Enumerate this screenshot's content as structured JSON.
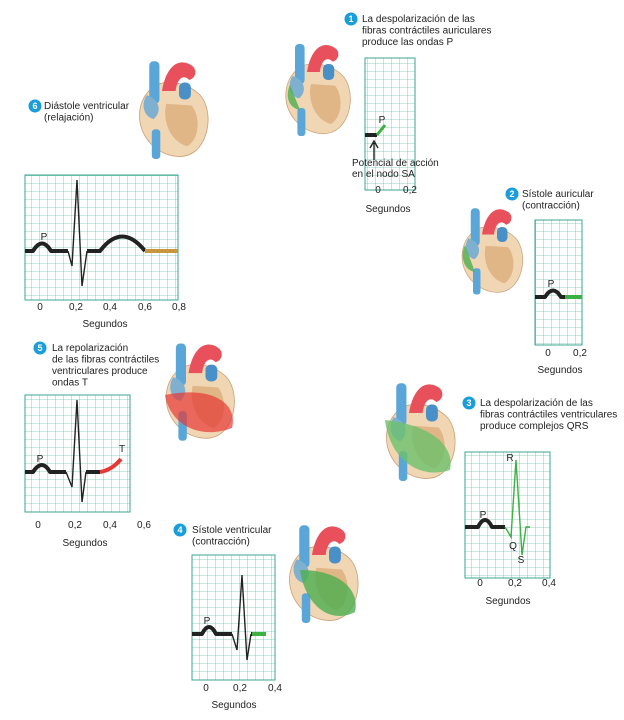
{
  "steps": [
    {
      "number": "1",
      "caption": [
        "La despolarización de las",
        "fibras contráctiles auriculares",
        "produce las ondas P"
      ],
      "xticks": [
        "0",
        "0,2"
      ],
      "xlabel": "Segundos",
      "waves": [
        "P"
      ]
    },
    {
      "number": "2",
      "caption": [
        "Sístole auricular",
        "(contracción)"
      ],
      "xticks": [
        "0",
        "0,2"
      ],
      "xlabel": "Segundos",
      "waves": [
        "P"
      ]
    },
    {
      "number": "3",
      "caption": [
        "La despolarización de las",
        "fibras contráctiles ventriculares",
        "produce complejos QRS"
      ],
      "xticks": [
        "0",
        "0,2",
        "0,4"
      ],
      "xlabel": "Segundos",
      "waves": [
        "P",
        "R",
        "Q",
        "S"
      ]
    },
    {
      "number": "4",
      "caption": [
        "Sístole ventricular",
        "(contracción)"
      ],
      "xticks": [
        "0",
        "0,2",
        "0,4"
      ],
      "xlabel": "Segundos",
      "waves": [
        "P"
      ]
    },
    {
      "number": "5",
      "caption": [
        "La repolarización",
        "de las fibras contráctiles",
        "ventriculares produce",
        "ondas T"
      ],
      "xticks": [
        "0",
        "0,2",
        "0,4",
        "0,6"
      ],
      "xlabel": "Segundos",
      "waves": [
        "P",
        "T"
      ]
    },
    {
      "number": "6",
      "caption": [
        "Diástole ventricular",
        "(relajación)"
      ],
      "xticks": [
        "0",
        "0,2",
        "0,4",
        "0,6",
        "0,8"
      ],
      "xlabel": "Segundos",
      "waves": [
        "P"
      ]
    }
  ],
  "annotation": [
    "Potencial de acción",
    "en el nodo SA"
  ]
}
